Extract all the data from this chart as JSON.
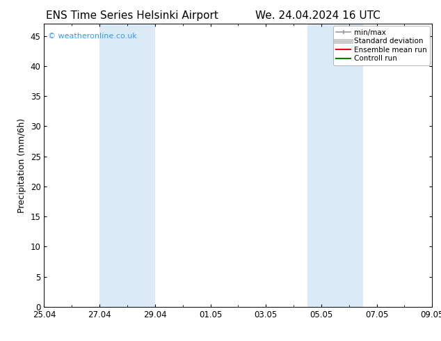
{
  "title_left": "ENS Time Series Helsinki Airport",
  "title_right": "We. 24.04.2024 16 UTC",
  "ylabel": "Precipitation (mm/6h)",
  "ylim": [
    0,
    47
  ],
  "yticks": [
    0,
    5,
    10,
    15,
    20,
    25,
    30,
    35,
    40,
    45
  ],
  "xtick_labels": [
    "25.04",
    "27.04",
    "29.04",
    "01.05",
    "03.05",
    "05.05",
    "07.05",
    "09.05"
  ],
  "xtick_positions": [
    0,
    2,
    4,
    6,
    8,
    10,
    12,
    14
  ],
  "xlim": [
    0,
    14
  ],
  "shaded_regions": [
    {
      "start": 2,
      "end": 4
    },
    {
      "start": 9.5,
      "end": 11.5
    }
  ],
  "shaded_color": "#daeaf7",
  "watermark_text": "© weatheronline.co.uk",
  "watermark_color": "#3399ff",
  "legend_items": [
    {
      "label": "min/max",
      "color": "#999999",
      "lw": 1.2,
      "style": "line_with_caps"
    },
    {
      "label": "Standard deviation",
      "color": "#cccccc",
      "lw": 5,
      "style": "line"
    },
    {
      "label": "Ensemble mean run",
      "color": "#ff0000",
      "lw": 1.5,
      "style": "line"
    },
    {
      "label": "Controll run",
      "color": "#008000",
      "lw": 1.5,
      "style": "line"
    }
  ],
  "background_color": "#ffffff",
  "plot_bg_color": "#ffffff",
  "title_fontsize": 11,
  "axis_label_fontsize": 9,
  "tick_fontsize": 8.5,
  "legend_fontsize": 7.5,
  "watermark_fontsize": 8
}
